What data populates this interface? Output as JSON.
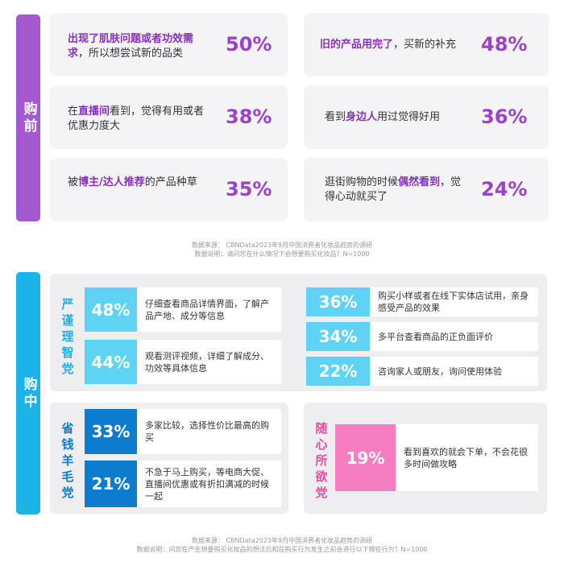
{
  "section1": {
    "label": "购前",
    "cards": [
      {
        "pre": "",
        "hl": "出现了肌肤问题或者功效需求",
        "post": "，所以想尝试新的品类",
        "pct": "50%"
      },
      {
        "pre": "",
        "hl": "旧的产品用完了",
        "post": "，买新的补充",
        "pct": "48%"
      },
      {
        "pre": "在",
        "hl": "直播间",
        "post": "看到，觉得有用或者优惠力度大",
        "pct": "38%"
      },
      {
        "pre": "看到",
        "hl": "身边人",
        "post": "用过觉得好用",
        "pct": "36%"
      },
      {
        "pre": "被",
        "hl": "博主/达人推荐",
        "post": "的产品种草",
        "pct": "35%"
      },
      {
        "pre": "逛街购物的时候",
        "hl": "偶然看到",
        "post": "，觉得心动就买了",
        "pct": "24%"
      }
    ],
    "note1": "数据来源： CBNData2023年9月中国消费者化妆品趋势的调研",
    "note2": "数据说明：请问您在什么情况下会想要购买化妆品？N=1000"
  },
  "section2": {
    "label": "购中",
    "rational": {
      "label": "严谨理智党",
      "items": [
        {
          "pct": "48%",
          "text": "仔细查看商品详情界面，了解产品产地、成分等信息"
        },
        {
          "pct": "44%",
          "text": "观看测评视频，详细了解成分、功效等具体信息"
        },
        {
          "pct": "36%",
          "text": "购买小样或者在线下实体店试用，亲身感受产品的效果"
        },
        {
          "pct": "34%",
          "text": "多平台查看商品的正负面评价"
        },
        {
          "pct": "22%",
          "text": "咨询家人或朋友，询问使用体验"
        }
      ]
    },
    "thrifty": {
      "label": "省钱羊毛党",
      "items": [
        {
          "pct": "33%",
          "text": "多家比较，选择性价比最高的购买"
        },
        {
          "pct": "21%",
          "text": "不急于马上购买，等电商大促、直播间优惠或有折扣满减的时候一起"
        }
      ]
    },
    "impulse": {
      "label": "随心所欲党",
      "items": [
        {
          "pct": "19%",
          "text": "看到喜欢的就会下单，不会花很多时间做攻略"
        }
      ]
    },
    "note1": "数据来源： CBNData2023年9月中国消费者化妆品趋势的调研",
    "note2": "数据说明：问您在产生想要购买化妆品的想法后和在购买行为发生之前会进行以下哪些行为？N=1000"
  },
  "colors": {
    "purple": "#a559d1",
    "blue": "#1bb4e8",
    "dark_blue": "#0d7ccf",
    "pink": "#f57ec1"
  }
}
